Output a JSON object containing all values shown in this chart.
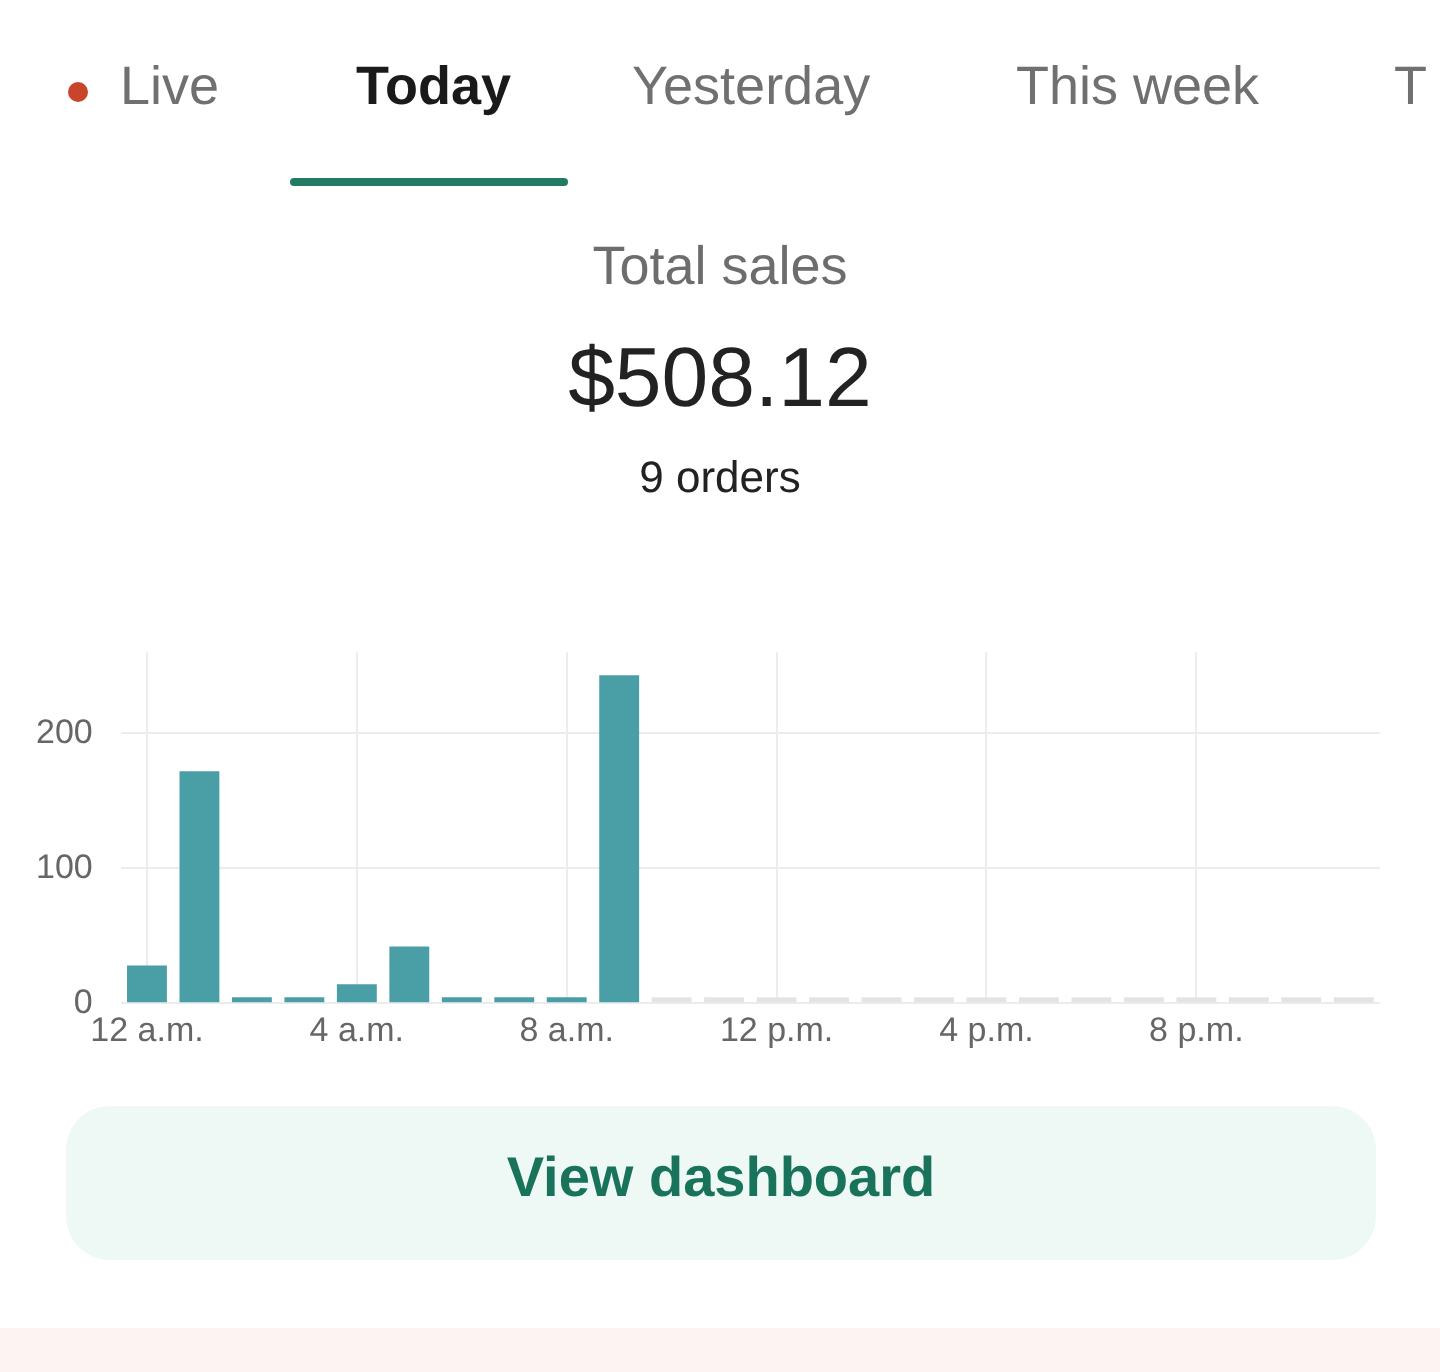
{
  "chart_data": {
    "type": "bar",
    "title": "Total sales",
    "subtitle": "$508.12",
    "annotations": [
      "Live",
      "Today",
      "Yesterday",
      "This week",
      "T",
      "9 orders",
      "View dashboard"
    ],
    "categories": [
      "12 a.m.",
      null,
      null,
      null,
      "4 a.m.",
      null,
      null,
      null,
      "8 a.m.",
      null,
      null,
      null,
      "12 p.m.",
      null,
      null,
      null,
      "4 p.m.",
      null,
      null,
      null,
      "8 p.m.",
      null,
      null,
      null
    ],
    "values": [
      28,
      172,
      4,
      4,
      14,
      42,
      4,
      4,
      4,
      243,
      0,
      0,
      0,
      0,
      0,
      0,
      0,
      0,
      0,
      0,
      0,
      0,
      0,
      0
    ],
    "colors": [
      "#4a9ea6",
      "#4a9ea6",
      "#4a9ea6",
      "#4a9ea6",
      "#4a9ea6",
      "#4a9ea6",
      "#4a9ea6",
      "#4a9ea6",
      "#4a9ea6",
      "#4a9ea6",
      "#e4e4e4",
      "#e4e4e4",
      "#e4e4e4",
      "#e4e4e4",
      "#e4e4e4",
      "#e4e4e4",
      "#e4e4e4",
      "#e4e4e4",
      "#e4e4e4",
      "#e4e4e4",
      "#e4e4e4",
      "#e4e4e4",
      "#e4e4e4",
      "#e4e4e4"
    ],
    "ylim": [
      0,
      260
    ],
    "yticks": [
      0,
      100,
      200
    ],
    "grid": true,
    "legend": false
  }
}
